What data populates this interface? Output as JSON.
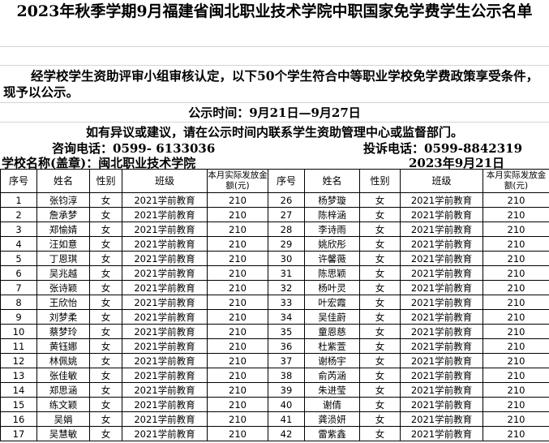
{
  "header": {
    "title": "2023年秋季学期9月福建省闽北职业技术学院中职国家免学费学生公示名单",
    "notice": "经学校学生资助评审小组审核认定，以下50个学生符合中等职业学校免学费政策享受条件，现予以公示。",
    "period": "公示时间：9月21日—9月27日",
    "objection": "如有异议或建议，请在公示时间内联系学生资助管理中心或监督部门。",
    "consult_phone": "咨询电话：0599- 6133036",
    "complaint_phone": "投诉电话：0599-8842319",
    "school": "学校名称(盖章)：闽北职业技术学院",
    "date": "2023年9月21日"
  },
  "table": {
    "headers": [
      "序号",
      "姓名",
      "性别",
      "班级",
      "本月实际发放金额(元)",
      "序号",
      "姓名",
      "性别",
      "班级",
      "本月实际发放金额(元)"
    ],
    "rows": [
      [
        1,
        "张钧淳",
        "女",
        "2021学前教育",
        210,
        26,
        "杨梦璇",
        "女",
        "2021学前教育",
        210
      ],
      [
        2,
        "詹承梦",
        "女",
        "2021学前教育",
        210,
        27,
        "陈梓涵",
        "女",
        "2021学前教育",
        210
      ],
      [
        3,
        "郑愉婧",
        "女",
        "2021学前教育",
        210,
        28,
        "李诗雨",
        "女",
        "2021学前教育",
        210
      ],
      [
        4,
        "汪如意",
        "女",
        "2021学前教育",
        210,
        29,
        "姚欣彤",
        "女",
        "2021学前教育",
        210
      ],
      [
        5,
        "丁恩琪",
        "女",
        "2021学前教育",
        210,
        30,
        "许馨薇",
        "女",
        "2021学前教育",
        210
      ],
      [
        6,
        "吴兆越",
        "女",
        "2021学前教育",
        210,
        31,
        "陈思颖",
        "女",
        "2021学前教育",
        210
      ],
      [
        7,
        "张诗颖",
        "女",
        "2021学前教育",
        210,
        32,
        "杨叶灵",
        "女",
        "2021学前教育",
        210
      ],
      [
        8,
        "王欣怡",
        "女",
        "2021学前教育",
        210,
        33,
        "叶宏霞",
        "女",
        "2021学前教育",
        210
      ],
      [
        9,
        "刘梦柔",
        "女",
        "2021学前教育",
        210,
        34,
        "吴佳蔚",
        "女",
        "2021学前教育",
        210
      ],
      [
        10,
        "蔡梦玲",
        "女",
        "2021学前教育",
        210,
        35,
        "童恩慈",
        "女",
        "2021学前教育",
        210
      ],
      [
        11,
        "黄钰娜",
        "女",
        "2021学前教育",
        210,
        36,
        "杜紫萱",
        "女",
        "2021学前教育",
        210
      ],
      [
        12,
        "林佩姚",
        "女",
        "2021学前教育",
        210,
        37,
        "谢杨宇",
        "女",
        "2021学前教育",
        210
      ],
      [
        13,
        "张佳敏",
        "女",
        "2021学前教育",
        210,
        38,
        "俞芮涵",
        "女",
        "2021学前教育",
        210
      ],
      [
        14,
        "郑思涵",
        "女",
        "2021学前教育",
        210,
        39,
        "朱进莹",
        "女",
        "2021学前教育",
        210
      ],
      [
        15,
        "练文颖",
        "女",
        "2021学前教育",
        210,
        40,
        "谢倩",
        "女",
        "2021学前教育",
        210
      ],
      [
        16,
        "吴娟",
        "女",
        "2021学前教育",
        210,
        41,
        "龚涢妍",
        "女",
        "2021学前教育",
        210
      ],
      [
        17,
        "吴慧敏",
        "女",
        "2021学前教育",
        210,
        42,
        "雷紫鑫",
        "女",
        "2021学前教育",
        210
      ]
    ]
  }
}
